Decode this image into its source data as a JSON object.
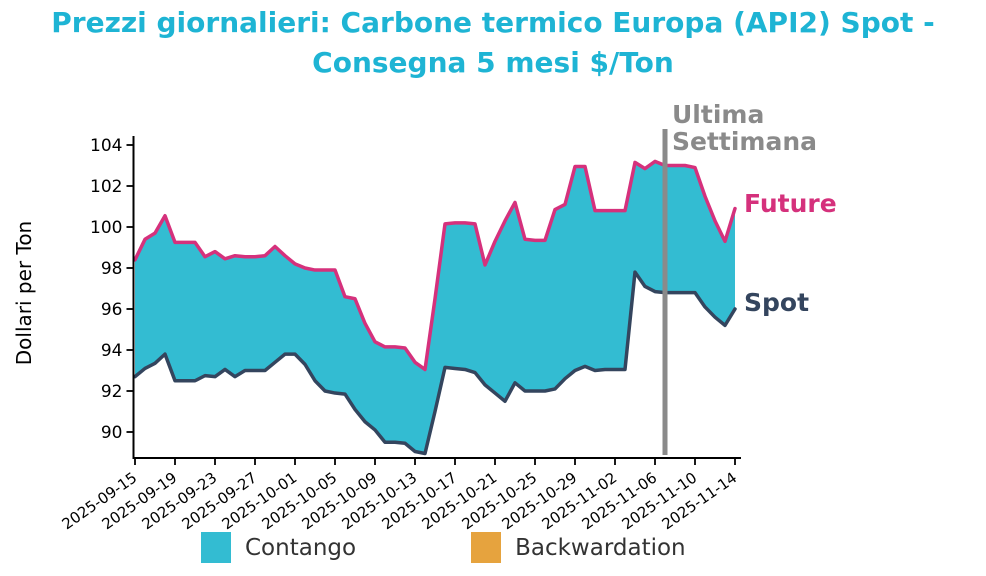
{
  "title": {
    "line1": "Prezzi giornalieri: Carbone termico Europa (API2) Spot -",
    "line2": "Consegna 5 mesi $/Ton"
  },
  "y_axis": {
    "label": "Dollari per Ton",
    "ticks": [
      90,
      92,
      94,
      96,
      98,
      100,
      102,
      104
    ]
  },
  "x_axis": {
    "tick_labels": [
      "2025-09-15",
      "2025-09-19",
      "2025-09-23",
      "2025-09-27",
      "2025-10-01",
      "2025-10-05",
      "2025-10-09",
      "2025-10-13",
      "2025-10-17",
      "2025-10-21",
      "2025-10-25",
      "2025-10-29",
      "2025-11-02",
      "2025-11-06",
      "2025-11-10",
      "2025-11-14"
    ]
  },
  "annotations": {
    "vline_label_line1": "Ultima",
    "vline_label_line2": "Settimana",
    "future_label": "Future",
    "spot_label": "Spot"
  },
  "legend": {
    "contango_label": "Contango",
    "backwardation_label": "Backwardation"
  },
  "colors": {
    "title": "#1eb4d4",
    "contango_fill": "#33bcd2",
    "backwardation_fill": "#e6a33e",
    "future_line": "#d5317c",
    "spot_line": "#34455e",
    "vline": "#8a8a8a",
    "annotation_gray": "#8a8a8a",
    "axis": "#000000",
    "legend_text": "#333333"
  },
  "chart_data": {
    "type": "area",
    "title": "Prezzi giornalieri: Carbone termico Europa (API2) Spot - Consegna 5 mesi $/Ton",
    "ylabel": "Dollari per Ton",
    "ylim": [
      88.7,
      104.4
    ],
    "grid": false,
    "legend_position": "bottom",
    "fill_rule": "Contango: area between curves where Future > Spot; Backwardation where Future < Spot",
    "vline_date": "2025-11-07",
    "vline_label": "Ultima Settimana",
    "x": [
      "2025-09-15",
      "2025-09-16",
      "2025-09-17",
      "2025-09-18",
      "2025-09-19",
      "2025-09-20",
      "2025-09-21",
      "2025-09-22",
      "2025-09-23",
      "2025-09-24",
      "2025-09-25",
      "2025-09-26",
      "2025-09-27",
      "2025-09-28",
      "2025-09-29",
      "2025-09-30",
      "2025-10-01",
      "2025-10-02",
      "2025-10-03",
      "2025-10-04",
      "2025-10-05",
      "2025-10-06",
      "2025-10-07",
      "2025-10-08",
      "2025-10-09",
      "2025-10-10",
      "2025-10-11",
      "2025-10-12",
      "2025-10-13",
      "2025-10-14",
      "2025-10-15",
      "2025-10-16",
      "2025-10-17",
      "2025-10-18",
      "2025-10-19",
      "2025-10-20",
      "2025-10-21",
      "2025-10-22",
      "2025-10-23",
      "2025-10-24",
      "2025-10-25",
      "2025-10-26",
      "2025-10-27",
      "2025-10-28",
      "2025-10-29",
      "2025-10-30",
      "2025-10-31",
      "2025-11-01",
      "2025-11-02",
      "2025-11-03",
      "2025-11-04",
      "2025-11-05",
      "2025-11-06",
      "2025-11-07",
      "2025-11-08",
      "2025-11-09",
      "2025-11-10",
      "2025-11-11",
      "2025-11-12",
      "2025-11-13",
      "2025-11-14"
    ],
    "series": [
      {
        "name": "Future (Consegna 5 mesi)",
        "values": [
          98.4,
          99.4,
          99.7,
          100.55,
          99.25,
          99.25,
          99.25,
          98.55,
          98.8,
          98.45,
          98.6,
          98.55,
          98.55,
          98.6,
          99.05,
          98.6,
          98.2,
          98.0,
          97.9,
          97.9,
          97.9,
          96.6,
          96.5,
          95.3,
          94.4,
          94.15,
          94.15,
          94.1,
          93.4,
          93.05,
          96.5,
          100.15,
          100.2,
          100.2,
          100.15,
          98.15,
          99.3,
          100.3,
          101.2,
          99.4,
          99.35,
          99.35,
          100.85,
          101.1,
          102.95,
          102.95,
          100.8,
          100.8,
          100.8,
          100.8,
          103.15,
          102.85,
          103.2,
          103.0,
          103.0,
          103.0,
          102.9,
          101.5,
          100.3,
          99.3,
          100.9
        ]
      },
      {
        "name": "Spot",
        "values": [
          92.7,
          93.1,
          93.35,
          93.8,
          92.5,
          92.5,
          92.5,
          92.75,
          92.7,
          93.05,
          92.7,
          93.0,
          93.0,
          93.0,
          93.4,
          93.8,
          93.8,
          93.3,
          92.5,
          92.0,
          91.9,
          91.85,
          91.1,
          90.5,
          90.1,
          89.5,
          89.5,
          89.45,
          89.05,
          88.95,
          91.0,
          93.15,
          93.1,
          93.05,
          92.9,
          92.3,
          91.9,
          91.5,
          92.4,
          92.0,
          92.0,
          92.0,
          92.1,
          92.6,
          93.0,
          93.2,
          93.0,
          93.05,
          93.05,
          93.05,
          97.8,
          97.1,
          96.85,
          96.8,
          96.8,
          96.8,
          96.8,
          96.1,
          95.6,
          95.2,
          96.0
        ]
      }
    ]
  }
}
